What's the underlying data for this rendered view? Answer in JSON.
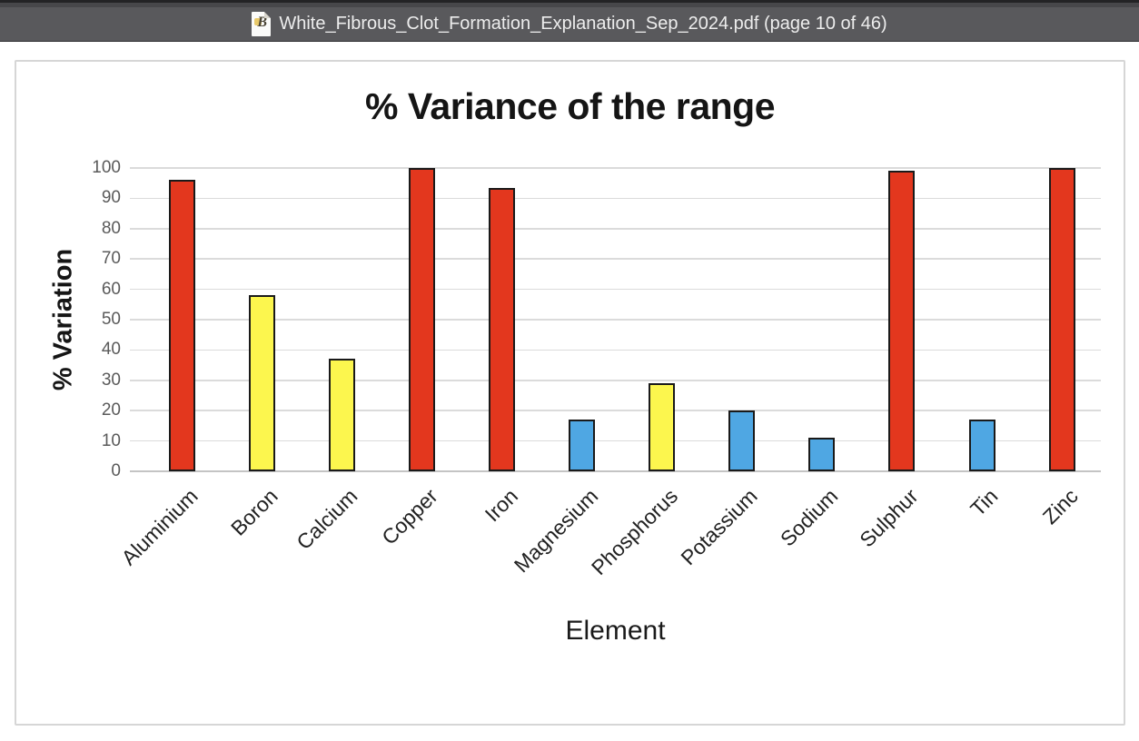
{
  "window": {
    "title": "White_Fibrous_Clot_Formation_Explanation_Sep_2024.pdf (page 10 of 46)",
    "icon": "pdf-document-icon"
  },
  "chart_data": {
    "type": "bar",
    "title": "% Variance of the range",
    "xlabel": "Element",
    "ylabel": "% Variation",
    "ylim": [
      0,
      100
    ],
    "yticks": [
      0,
      10,
      20,
      30,
      40,
      50,
      60,
      70,
      80,
      90,
      100
    ],
    "grid": true,
    "legend": false,
    "categories": [
      "Aluminium",
      "Boron",
      "Calcium",
      "Copper",
      "Iron",
      "Magnesium",
      "Phosphorus",
      "Potassium",
      "Sodium",
      "Sulphur",
      "Tin",
      "Zinc"
    ],
    "values": [
      96,
      58,
      37,
      100,
      93.5,
      17,
      29,
      20,
      11,
      99,
      17,
      100
    ],
    "bar_color_names": [
      "red",
      "yellow",
      "yellow",
      "red",
      "red",
      "blue",
      "yellow",
      "blue",
      "blue",
      "red",
      "blue",
      "red"
    ],
    "colors": {
      "red": "#e3371e",
      "yellow": "#fcf64e",
      "blue": "#4fa7e3",
      "bar_border": "#1a1a1a",
      "gridline": "#dbdbdb",
      "axis_line": "#c4c4c4",
      "tick_text": "#5a5a5a"
    }
  }
}
